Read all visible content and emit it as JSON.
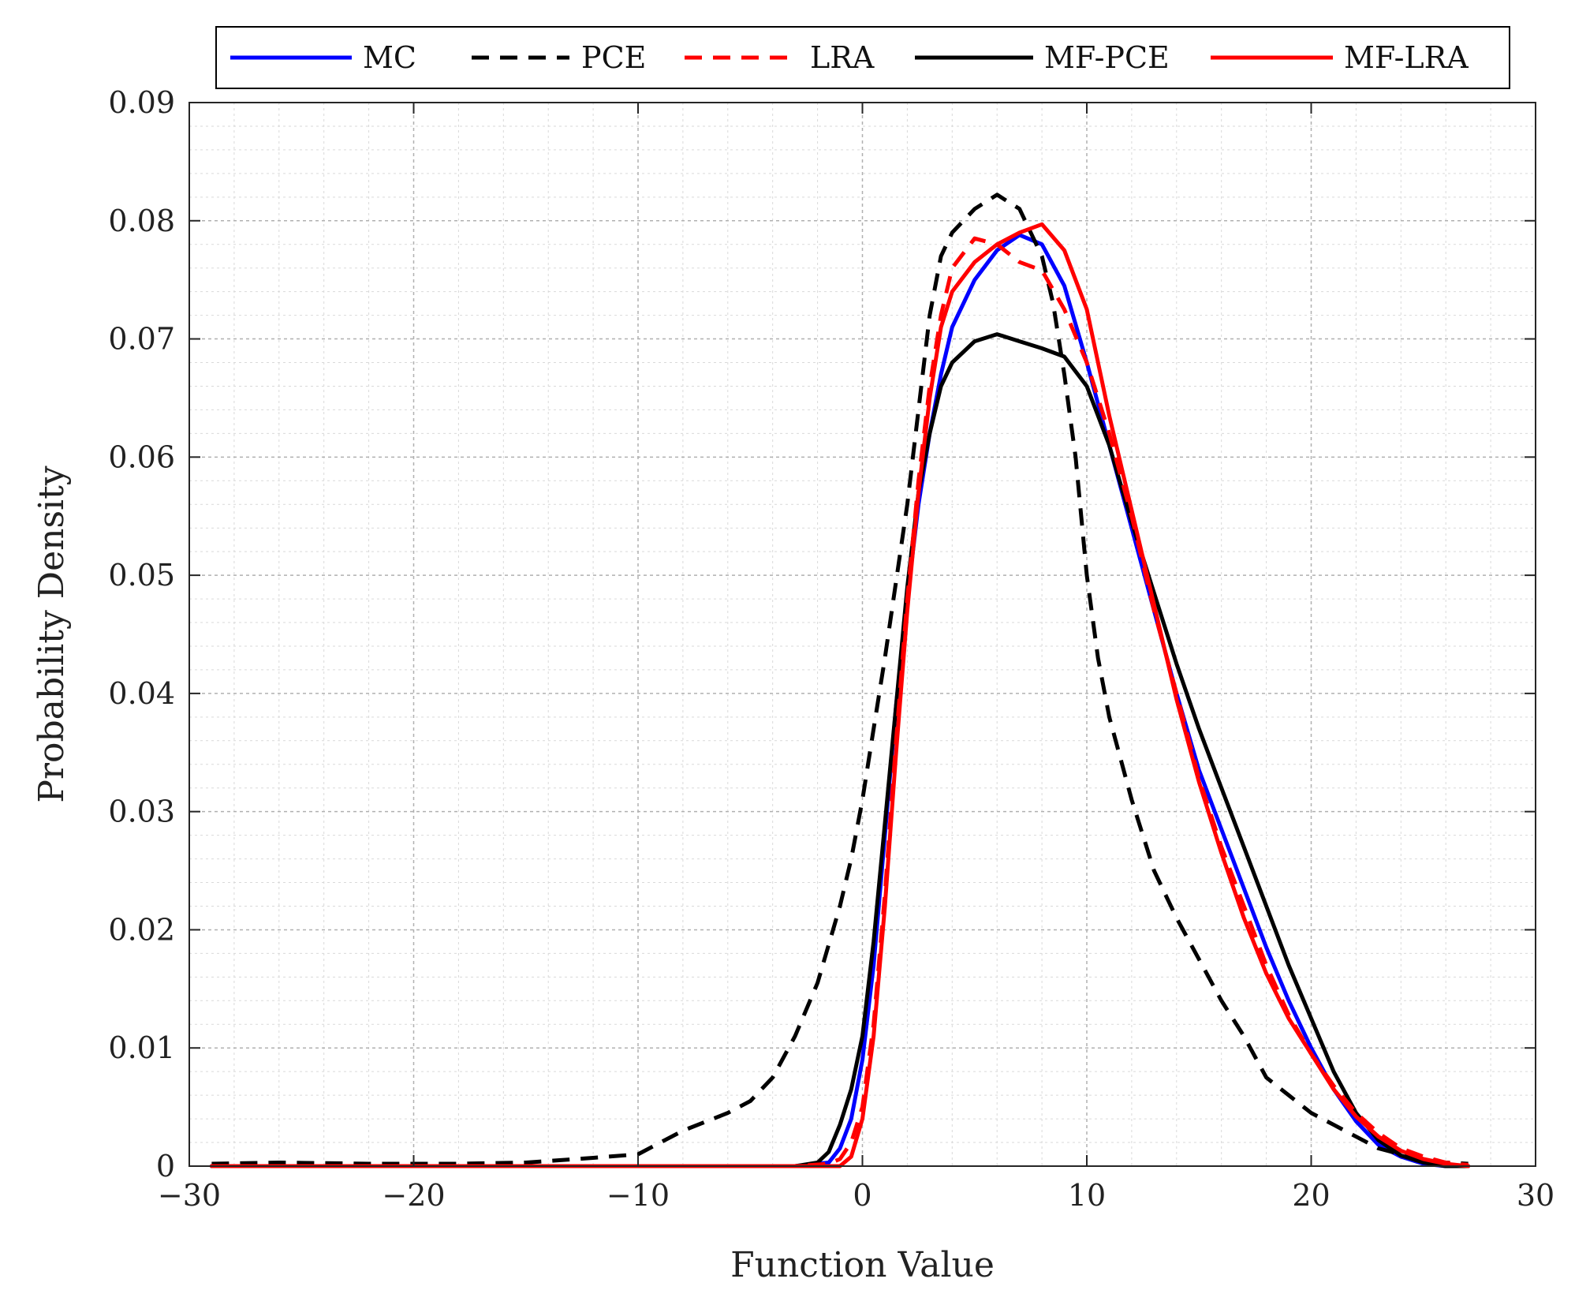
{
  "chart_data": {
    "type": "line",
    "title": "",
    "xlabel": "Function Value",
    "ylabel": "Probability Density",
    "xlim": [
      -30,
      30
    ],
    "ylim": [
      0,
      0.09
    ],
    "xticks": [
      -30,
      -20,
      -10,
      0,
      10,
      20,
      30
    ],
    "xtick_labels": [
      "−30",
      "−20",
      "−10",
      "0",
      "10",
      "20",
      "30"
    ],
    "yticks": [
      0,
      0.01,
      0.02,
      0.03,
      0.04,
      0.05,
      0.06,
      0.07,
      0.08,
      0.09
    ],
    "ytick_labels": [
      "0",
      "0.01",
      "0.02",
      "0.03",
      "0.04",
      "0.05",
      "0.06",
      "0.07",
      "0.08",
      "0.09"
    ],
    "grid": true,
    "legend_position": "top",
    "series": [
      {
        "name": "MC",
        "color": "#0000ff",
        "style": "solid",
        "points": [
          [
            -29,
            0
          ],
          [
            -3,
            0
          ],
          [
            -1.5,
            0.0003
          ],
          [
            -1,
            0.0015
          ],
          [
            -0.5,
            0.004
          ],
          [
            0,
            0.009
          ],
          [
            0.5,
            0.017
          ],
          [
            1,
            0.028
          ],
          [
            1.5,
            0.039
          ],
          [
            2,
            0.048
          ],
          [
            2.5,
            0.056
          ],
          [
            3,
            0.062
          ],
          [
            3.5,
            0.067
          ],
          [
            4,
            0.071
          ],
          [
            5,
            0.075
          ],
          [
            6,
            0.0775
          ],
          [
            7,
            0.0788
          ],
          [
            8,
            0.078
          ],
          [
            9,
            0.0745
          ],
          [
            10,
            0.068
          ],
          [
            11,
            0.061
          ],
          [
            12,
            0.054
          ],
          [
            13,
            0.047
          ],
          [
            14,
            0.04
          ],
          [
            15,
            0.0335
          ],
          [
            16,
            0.0285
          ],
          [
            17,
            0.0235
          ],
          [
            18,
            0.0185
          ],
          [
            19,
            0.014
          ],
          [
            20,
            0.01
          ],
          [
            21,
            0.0065
          ],
          [
            22,
            0.0038
          ],
          [
            23,
            0.0018
          ],
          [
            24,
            0.0008
          ],
          [
            25,
            0.0002
          ],
          [
            26,
            0
          ],
          [
            27,
            0
          ]
        ]
      },
      {
        "name": "PCE",
        "color": "#000000",
        "style": "dashed",
        "points": [
          [
            -29,
            0.0002
          ],
          [
            -26,
            0.0003
          ],
          [
            -22,
            0.0002
          ],
          [
            -18,
            0.0002
          ],
          [
            -15,
            0.0003
          ],
          [
            -12,
            0.0007
          ],
          [
            -10,
            0.001
          ],
          [
            -9,
            0.002
          ],
          [
            -8,
            0.003
          ],
          [
            -6,
            0.0045
          ],
          [
            -5,
            0.0055
          ],
          [
            -4,
            0.0075
          ],
          [
            -3,
            0.011
          ],
          [
            -2,
            0.0155
          ],
          [
            -1,
            0.022
          ],
          [
            -0.5,
            0.026
          ],
          [
            0,
            0.031
          ],
          [
            0.5,
            0.037
          ],
          [
            1,
            0.043
          ],
          [
            2,
            0.056
          ],
          [
            2.5,
            0.064
          ],
          [
            3,
            0.072
          ],
          [
            3.5,
            0.077
          ],
          [
            4,
            0.079
          ],
          [
            5,
            0.081
          ],
          [
            6,
            0.0822
          ],
          [
            7,
            0.081
          ],
          [
            8,
            0.077
          ],
          [
            8.5,
            0.073
          ],
          [
            9,
            0.067
          ],
          [
            9.5,
            0.06
          ],
          [
            10,
            0.05
          ],
          [
            10.5,
            0.043
          ],
          [
            11,
            0.038
          ],
          [
            12,
            0.031
          ],
          [
            13,
            0.025
          ],
          [
            14,
            0.021
          ],
          [
            15,
            0.0175
          ],
          [
            16,
            0.014
          ],
          [
            17,
            0.011
          ],
          [
            18,
            0.0075
          ],
          [
            19,
            0.006
          ],
          [
            20,
            0.0045
          ],
          [
            21,
            0.0035
          ],
          [
            22,
            0.0025
          ],
          [
            23,
            0.0015
          ],
          [
            24,
            0.001
          ],
          [
            25,
            0.0006
          ],
          [
            26,
            0.0003
          ],
          [
            27,
            0.0002
          ]
        ]
      },
      {
        "name": "LRA",
        "color": "#ff0000",
        "style": "dashed",
        "points": [
          [
            -29,
            0
          ],
          [
            -3,
            0
          ],
          [
            -1.5,
            0.0002
          ],
          [
            -1,
            0.0006
          ],
          [
            -0.5,
            0.002
          ],
          [
            0,
            0.005
          ],
          [
            0.5,
            0.012
          ],
          [
            1,
            0.023
          ],
          [
            1.5,
            0.036
          ],
          [
            2,
            0.048
          ],
          [
            2.5,
            0.058
          ],
          [
            3,
            0.066
          ],
          [
            3.5,
            0.072
          ],
          [
            4,
            0.076
          ],
          [
            5,
            0.0785
          ],
          [
            6,
            0.078
          ],
          [
            7,
            0.0765
          ],
          [
            8,
            0.0758
          ],
          [
            9,
            0.0725
          ],
          [
            10,
            0.068
          ],
          [
            11,
            0.062
          ],
          [
            12,
            0.055
          ],
          [
            13,
            0.047
          ],
          [
            14,
            0.04
          ],
          [
            15,
            0.0328
          ],
          [
            16,
            0.027
          ],
          [
            17,
            0.022
          ],
          [
            18,
            0.017
          ],
          [
            19,
            0.0128
          ],
          [
            20,
            0.0095
          ],
          [
            21,
            0.0068
          ],
          [
            22,
            0.0045
          ],
          [
            23,
            0.0028
          ],
          [
            24,
            0.0015
          ],
          [
            25,
            0.0008
          ],
          [
            26,
            0.0003
          ],
          [
            27,
            0.0001
          ]
        ]
      },
      {
        "name": "MF-PCE",
        "color": "#000000",
        "style": "solid",
        "points": [
          [
            -29,
            0
          ],
          [
            -3,
            0
          ],
          [
            -2,
            0.0003
          ],
          [
            -1.5,
            0.0012
          ],
          [
            -1,
            0.0035
          ],
          [
            -0.5,
            0.0065
          ],
          [
            0,
            0.011
          ],
          [
            0.5,
            0.019
          ],
          [
            1,
            0.029
          ],
          [
            1.5,
            0.039
          ],
          [
            2,
            0.049
          ],
          [
            2.5,
            0.057
          ],
          [
            3,
            0.062
          ],
          [
            3.5,
            0.066
          ],
          [
            4,
            0.068
          ],
          [
            5,
            0.0698
          ],
          [
            6,
            0.0704
          ],
          [
            7,
            0.0698
          ],
          [
            8,
            0.0692
          ],
          [
            9,
            0.0685
          ],
          [
            10,
            0.066
          ],
          [
            11,
            0.061
          ],
          [
            12,
            0.0545
          ],
          [
            13,
            0.0485
          ],
          [
            14,
            0.0425
          ],
          [
            15,
            0.037
          ],
          [
            16,
            0.032
          ],
          [
            17,
            0.027
          ],
          [
            18,
            0.022
          ],
          [
            19,
            0.017
          ],
          [
            20,
            0.0125
          ],
          [
            21,
            0.008
          ],
          [
            22,
            0.0045
          ],
          [
            23,
            0.0022
          ],
          [
            24,
            0.0009
          ],
          [
            25,
            0.0003
          ],
          [
            26,
            0
          ],
          [
            27,
            0
          ]
        ]
      },
      {
        "name": "MF-LRA",
        "color": "#ff0000",
        "style": "solid",
        "points": [
          [
            -29,
            0
          ],
          [
            -1,
            0
          ],
          [
            -0.5,
            0.0008
          ],
          [
            0,
            0.004
          ],
          [
            0.5,
            0.011
          ],
          [
            1,
            0.022
          ],
          [
            1.5,
            0.035
          ],
          [
            2,
            0.047
          ],
          [
            2.5,
            0.057
          ],
          [
            3,
            0.065
          ],
          [
            3.5,
            0.071
          ],
          [
            4,
            0.074
          ],
          [
            5,
            0.0765
          ],
          [
            6,
            0.078
          ],
          [
            7,
            0.079
          ],
          [
            8,
            0.0797
          ],
          [
            9,
            0.0775
          ],
          [
            10,
            0.0725
          ],
          [
            11,
            0.0635
          ],
          [
            12,
            0.0555
          ],
          [
            13,
            0.0475
          ],
          [
            14,
            0.0395
          ],
          [
            15,
            0.0325
          ],
          [
            16,
            0.0265
          ],
          [
            17,
            0.021
          ],
          [
            18,
            0.0163
          ],
          [
            19,
            0.0125
          ],
          [
            20,
            0.0095
          ],
          [
            21,
            0.0065
          ],
          [
            22,
            0.0042
          ],
          [
            23,
            0.0025
          ],
          [
            24,
            0.0013
          ],
          [
            25,
            0.0006
          ],
          [
            26,
            0.0002
          ],
          [
            27,
            0
          ]
        ]
      }
    ]
  }
}
